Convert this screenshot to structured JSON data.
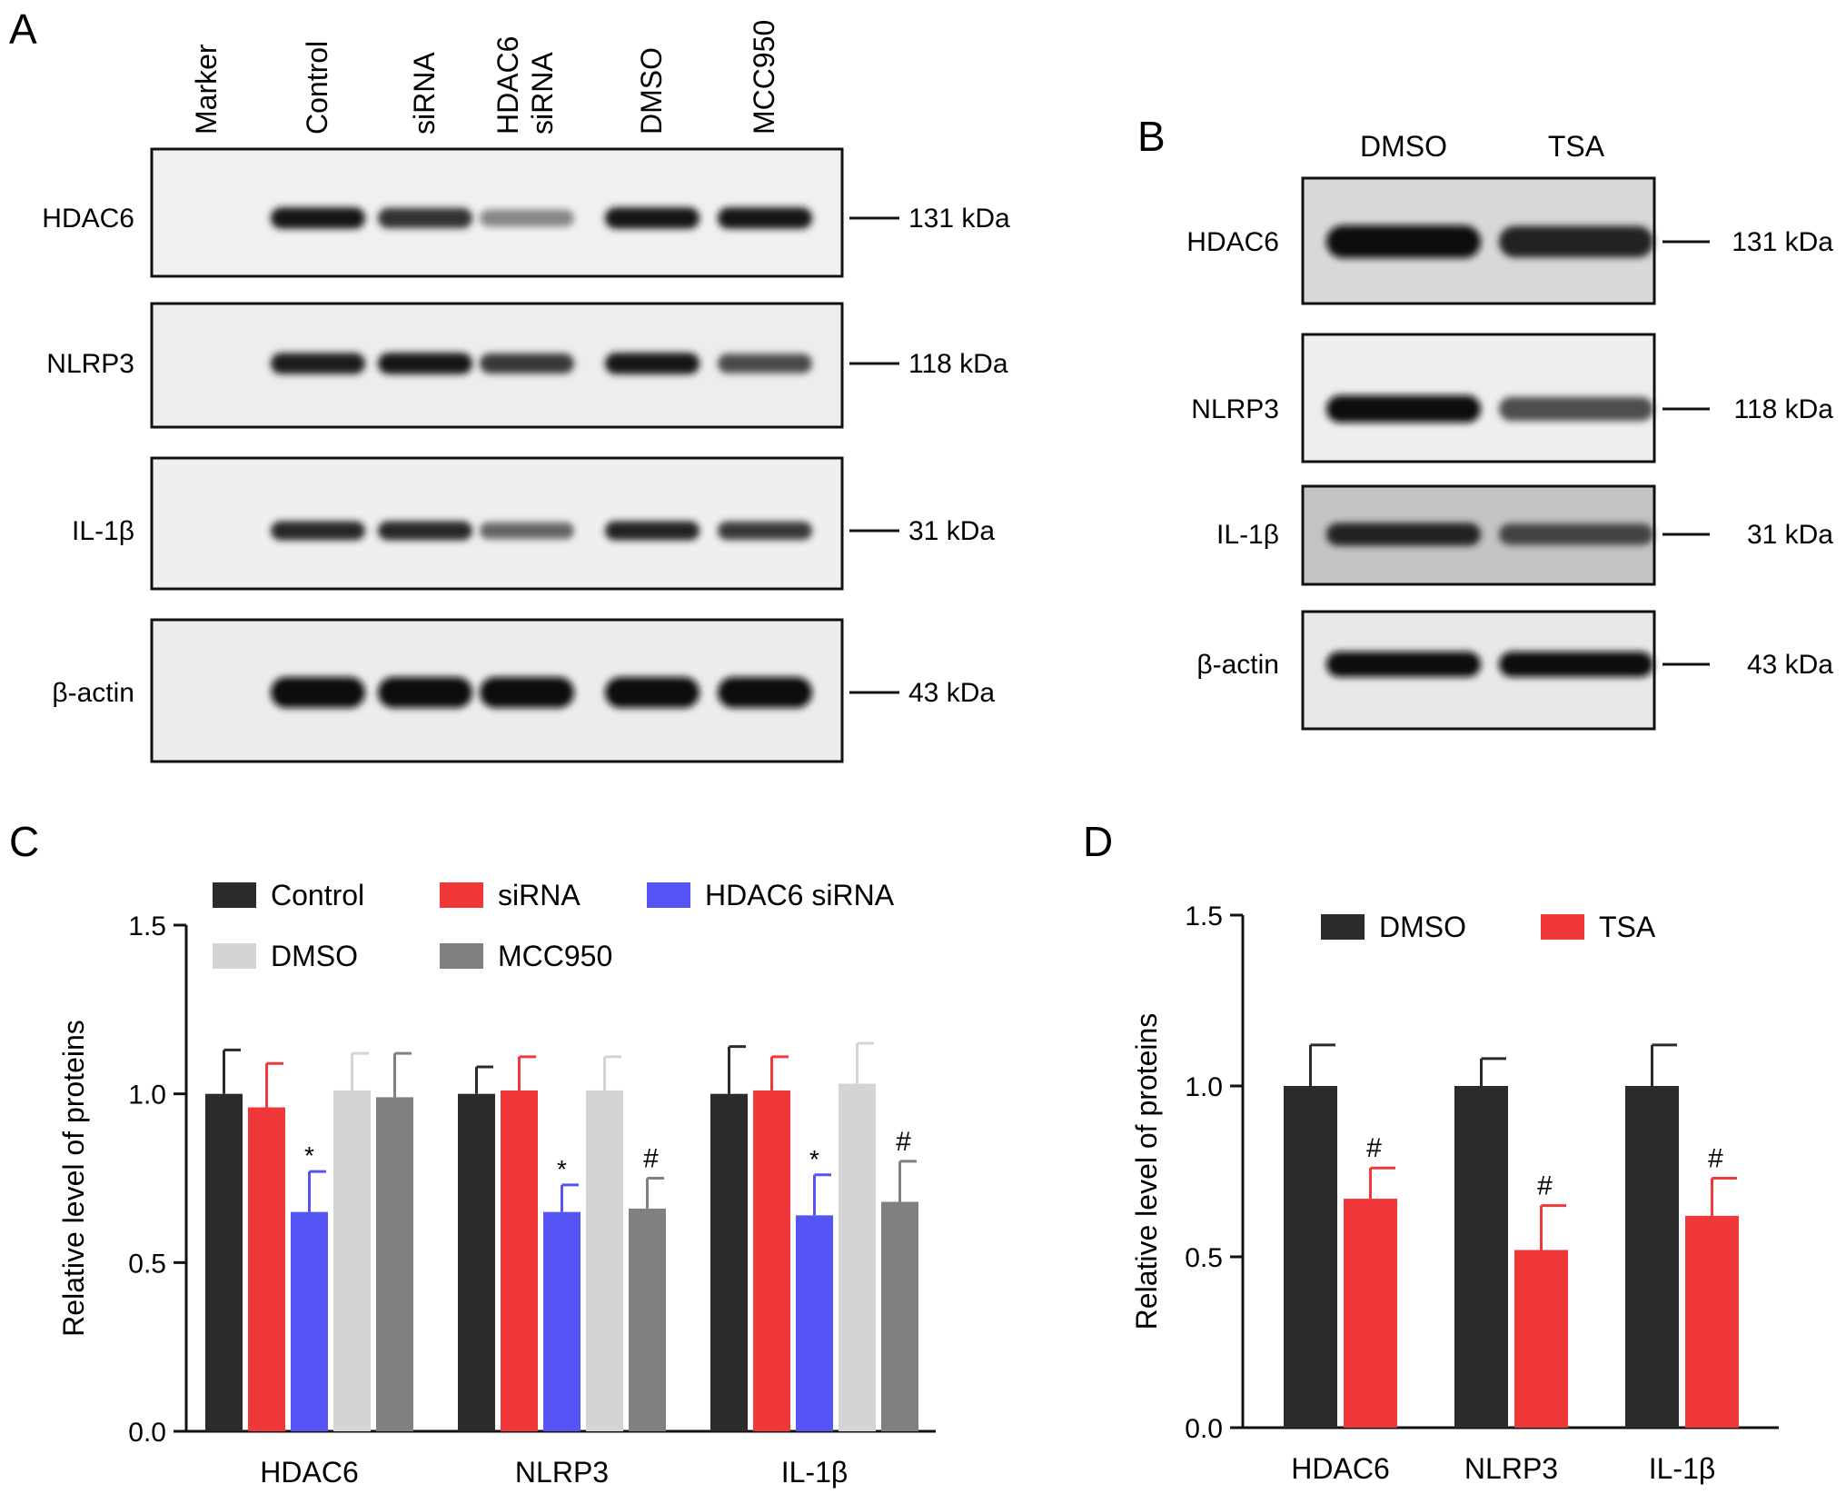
{
  "panels": {
    "a": {
      "letter": "A",
      "lanes": [
        "Marker",
        "Control",
        "siRNA",
        "HDAC6 siRNA",
        "DMSO",
        "MCC950"
      ],
      "blots": [
        {
          "protein": "HDAC6",
          "kda": "131 kDa",
          "intensity": [
            0,
            0.95,
            0.82,
            0.45,
            0.95,
            0.95
          ]
        },
        {
          "protein": "NLRP3",
          "kda": "118 kDa",
          "intensity": [
            0,
            0.92,
            0.95,
            0.8,
            0.95,
            0.72
          ]
        },
        {
          "protein": "IL-1β",
          "kda": "31 kDa",
          "intensity": [
            0,
            0.88,
            0.88,
            0.6,
            0.9,
            0.8
          ]
        },
        {
          "protein": "β-actin",
          "kda": "43 kDa",
          "intensity": [
            0,
            1,
            1,
            1,
            1,
            1
          ]
        }
      ]
    },
    "b": {
      "letter": "B",
      "lanes": [
        "DMSO",
        "TSA"
      ],
      "blots": [
        {
          "protein": "HDAC6",
          "kda": "131 kDa",
          "intensity": [
            1,
            0.9
          ]
        },
        {
          "protein": "NLRP3",
          "kda": "118 kDa",
          "intensity": [
            1,
            0.7
          ]
        },
        {
          "protein": "IL-1β",
          "kda": "31 kDa",
          "intensity": [
            0.9,
            0.75
          ]
        },
        {
          "protein": "β-actin",
          "kda": "43 kDa",
          "intensity": [
            1,
            1
          ]
        }
      ]
    },
    "c": {
      "letter": "C"
    },
    "d": {
      "letter": "D"
    }
  },
  "chart_data": [
    {
      "type": "bar",
      "panel": "C",
      "ylabel": "Relative level of proteins",
      "ylim": [
        0,
        1.5
      ],
      "yticks": [
        "0.0",
        "0.5",
        "1.0",
        "1.5"
      ],
      "categories": [
        "HDAC6",
        "NLRP3",
        "IL-1β"
      ],
      "series": [
        {
          "name": "Control",
          "color": "#2b2b2b",
          "values": [
            1.0,
            1.0,
            1.0
          ],
          "errors": [
            0.13,
            0.08,
            0.14
          ],
          "marks": [
            "",
            "",
            ""
          ]
        },
        {
          "name": "siRNA",
          "color": "#f03838",
          "values": [
            0.96,
            1.01,
            1.01
          ],
          "errors": [
            0.13,
            0.1,
            0.1
          ],
          "marks": [
            "",
            "",
            ""
          ]
        },
        {
          "name": "HDAC6 siRNA",
          "color": "#5555f5",
          "values": [
            0.65,
            0.65,
            0.64
          ],
          "errors": [
            0.12,
            0.08,
            0.12
          ],
          "marks": [
            "*",
            "*",
            "*"
          ]
        },
        {
          "name": "DMSO",
          "color": "#d4d4d4",
          "values": [
            1.01,
            1.01,
            1.03
          ],
          "errors": [
            0.11,
            0.1,
            0.12
          ],
          "marks": [
            "",
            "",
            ""
          ]
        },
        {
          "name": "MCC950",
          "color": "#808080",
          "values": [
            0.99,
            0.66,
            0.68
          ],
          "errors": [
            0.13,
            0.09,
            0.12
          ],
          "marks": [
            "",
            "#",
            "#"
          ]
        }
      ],
      "legend": "top"
    },
    {
      "type": "bar",
      "panel": "D",
      "ylabel": "Relative level of proteins",
      "ylim": [
        0,
        1.5
      ],
      "yticks": [
        "0.0",
        "0.5",
        "1.0",
        "1.5"
      ],
      "categories": [
        "HDAC6",
        "NLRP3",
        "IL-1β"
      ],
      "series": [
        {
          "name": "DMSO",
          "color": "#2b2b2b",
          "values": [
            1.0,
            1.0,
            1.0
          ],
          "errors": [
            0.12,
            0.08,
            0.12
          ],
          "marks": [
            "",
            "",
            ""
          ]
        },
        {
          "name": "TSA",
          "color": "#f03838",
          "values": [
            0.67,
            0.52,
            0.62
          ],
          "errors": [
            0.09,
            0.13,
            0.11
          ],
          "marks": [
            "#",
            "#",
            "#"
          ]
        }
      ],
      "legend": "top"
    }
  ]
}
